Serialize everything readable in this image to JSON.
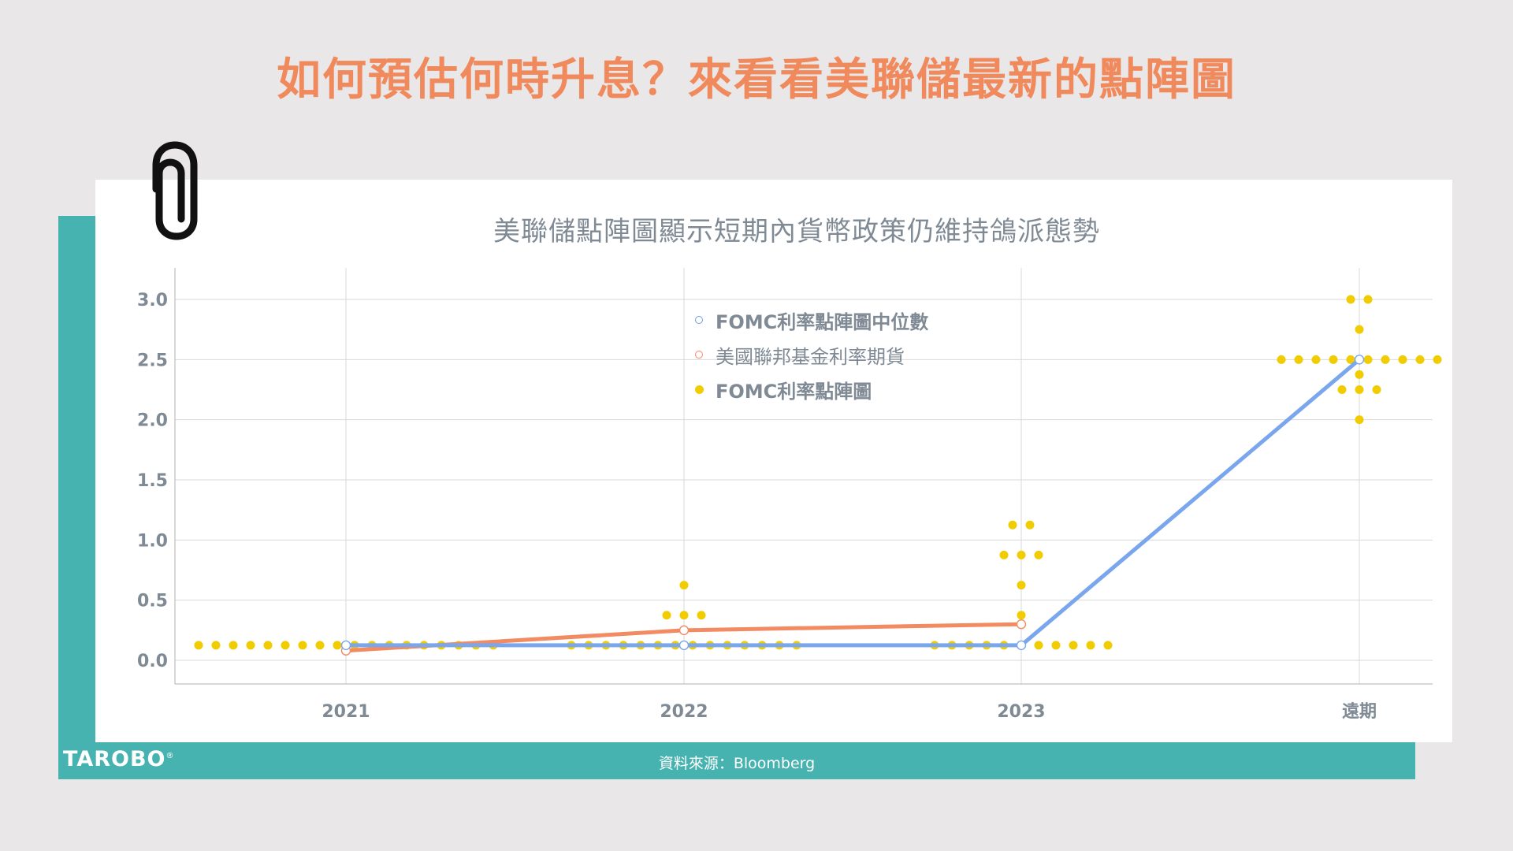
{
  "headline": "如何預估何時升息？來看看美聯儲最新的點陣圖",
  "source": "資料來源：Bloomberg",
  "logo": {
    "text": "TAROBO",
    "mark": "®"
  },
  "colors": {
    "headline": "#f08a5d",
    "teal": "#47b3b1",
    "median_line": "#7aa6ee",
    "futures_line": "#f28a62",
    "dots": "#f0cc00",
    "axis_text": "#7f8a95",
    "grid": "#d9d9d9"
  },
  "chart_data": {
    "type": "scatter",
    "title": "美聯儲點陣圖顯示短期內貨幣政策仍維持鴿派態勢",
    "categories": [
      "2021",
      "2022",
      "2023",
      "遠期"
    ],
    "ylim": [
      0,
      3.0
    ],
    "yticks": [
      "0.0",
      "0.5",
      "1.0",
      "1.5",
      "2.0",
      "2.5",
      "3.0"
    ],
    "grid": true,
    "legend_position": "top-center",
    "legend": [
      "FOMC利率點陣圖中位數",
      "美國聯邦基金利率期貨",
      "FOMC利率點陣圖"
    ],
    "series": [
      {
        "name": "FOMC利率點陣圖中位數",
        "kind": "line",
        "values": [
          0.125,
          0.125,
          0.125,
          2.5
        ]
      },
      {
        "name": "美國聯邦基金利率期貨",
        "kind": "line",
        "values": [
          0.08,
          0.25,
          0.3,
          null
        ]
      },
      {
        "name": "FOMC利率點陣圖",
        "kind": "dots",
        "groups": [
          {
            "category": "2021",
            "values": [
              0.125,
              0.125,
              0.125,
              0.125,
              0.125,
              0.125,
              0.125,
              0.125,
              0.125,
              0.125,
              0.125,
              0.125,
              0.125,
              0.125,
              0.125,
              0.125,
              0.125,
              0.125
            ]
          },
          {
            "category": "2022",
            "values": [
              0.625,
              0.375,
              0.375,
              0.375,
              0.125,
              0.125,
              0.125,
              0.125,
              0.125,
              0.125,
              0.125,
              0.125,
              0.125,
              0.125,
              0.125,
              0.125,
              0.125,
              0.125
            ]
          },
          {
            "category": "2023",
            "values": [
              1.125,
              1.125,
              0.875,
              0.875,
              0.875,
              0.625,
              0.375,
              0.125,
              0.125,
              0.125,
              0.125,
              0.125,
              0.125,
              0.125,
              0.125,
              0.125,
              0.125,
              0.125
            ]
          },
          {
            "category": "遠期",
            "values": [
              3.0,
              3.0,
              2.75,
              2.5,
              2.5,
              2.5,
              2.5,
              2.5,
              2.5,
              2.5,
              2.5,
              2.5,
              2.5,
              2.375,
              2.25,
              2.25,
              2.25,
              2.0
            ]
          }
        ]
      }
    ]
  }
}
